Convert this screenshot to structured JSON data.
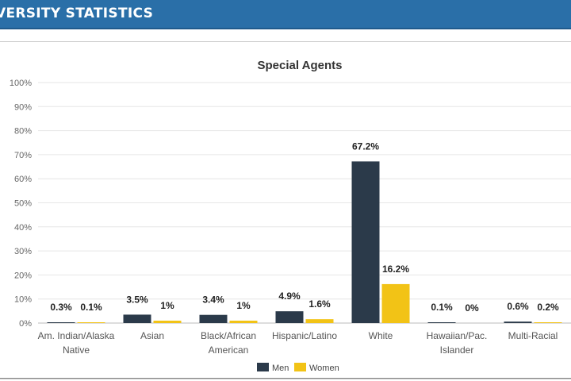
{
  "header": {
    "title": "VERSITY STATISTICS"
  },
  "colors": {
    "banner": "#2a6fa8",
    "men": "#2b3a4a",
    "women": "#f2c316"
  },
  "chart_data": {
    "type": "bar",
    "title": "Special Agents",
    "categories": [
      [
        "Am. Indian/Alaska",
        "Native"
      ],
      [
        "Asian"
      ],
      [
        "Black/African",
        "American"
      ],
      [
        "Hispanic/Latino"
      ],
      [
        "White"
      ],
      [
        "Hawaiian/Pac.",
        "Islander"
      ],
      [
        "Multi-Racial"
      ]
    ],
    "series": [
      {
        "name": "Men",
        "color": "#2b3a4a",
        "values": [
          0.3,
          3.5,
          3.4,
          4.9,
          67.2,
          0.1,
          0.6
        ],
        "labels": [
          "0.3%",
          "3.5%",
          "3.4%",
          "4.9%",
          "67.2%",
          "0.1%",
          "0.6%"
        ]
      },
      {
        "name": "Women",
        "color": "#f2c316",
        "values": [
          0.1,
          1,
          1,
          1.6,
          16.2,
          0,
          0.2
        ],
        "labels": [
          "0.1%",
          "1%",
          "1%",
          "1.6%",
          "16.2%",
          "0%",
          "0.2%"
        ]
      }
    ],
    "ylim": [
      0,
      100
    ],
    "yticks": [
      "0%",
      "10%",
      "20%",
      "30%",
      "40%",
      "50%",
      "60%",
      "70%",
      "80%",
      "90%",
      "100%"
    ],
    "grid": true,
    "legend": "bottom-center"
  }
}
